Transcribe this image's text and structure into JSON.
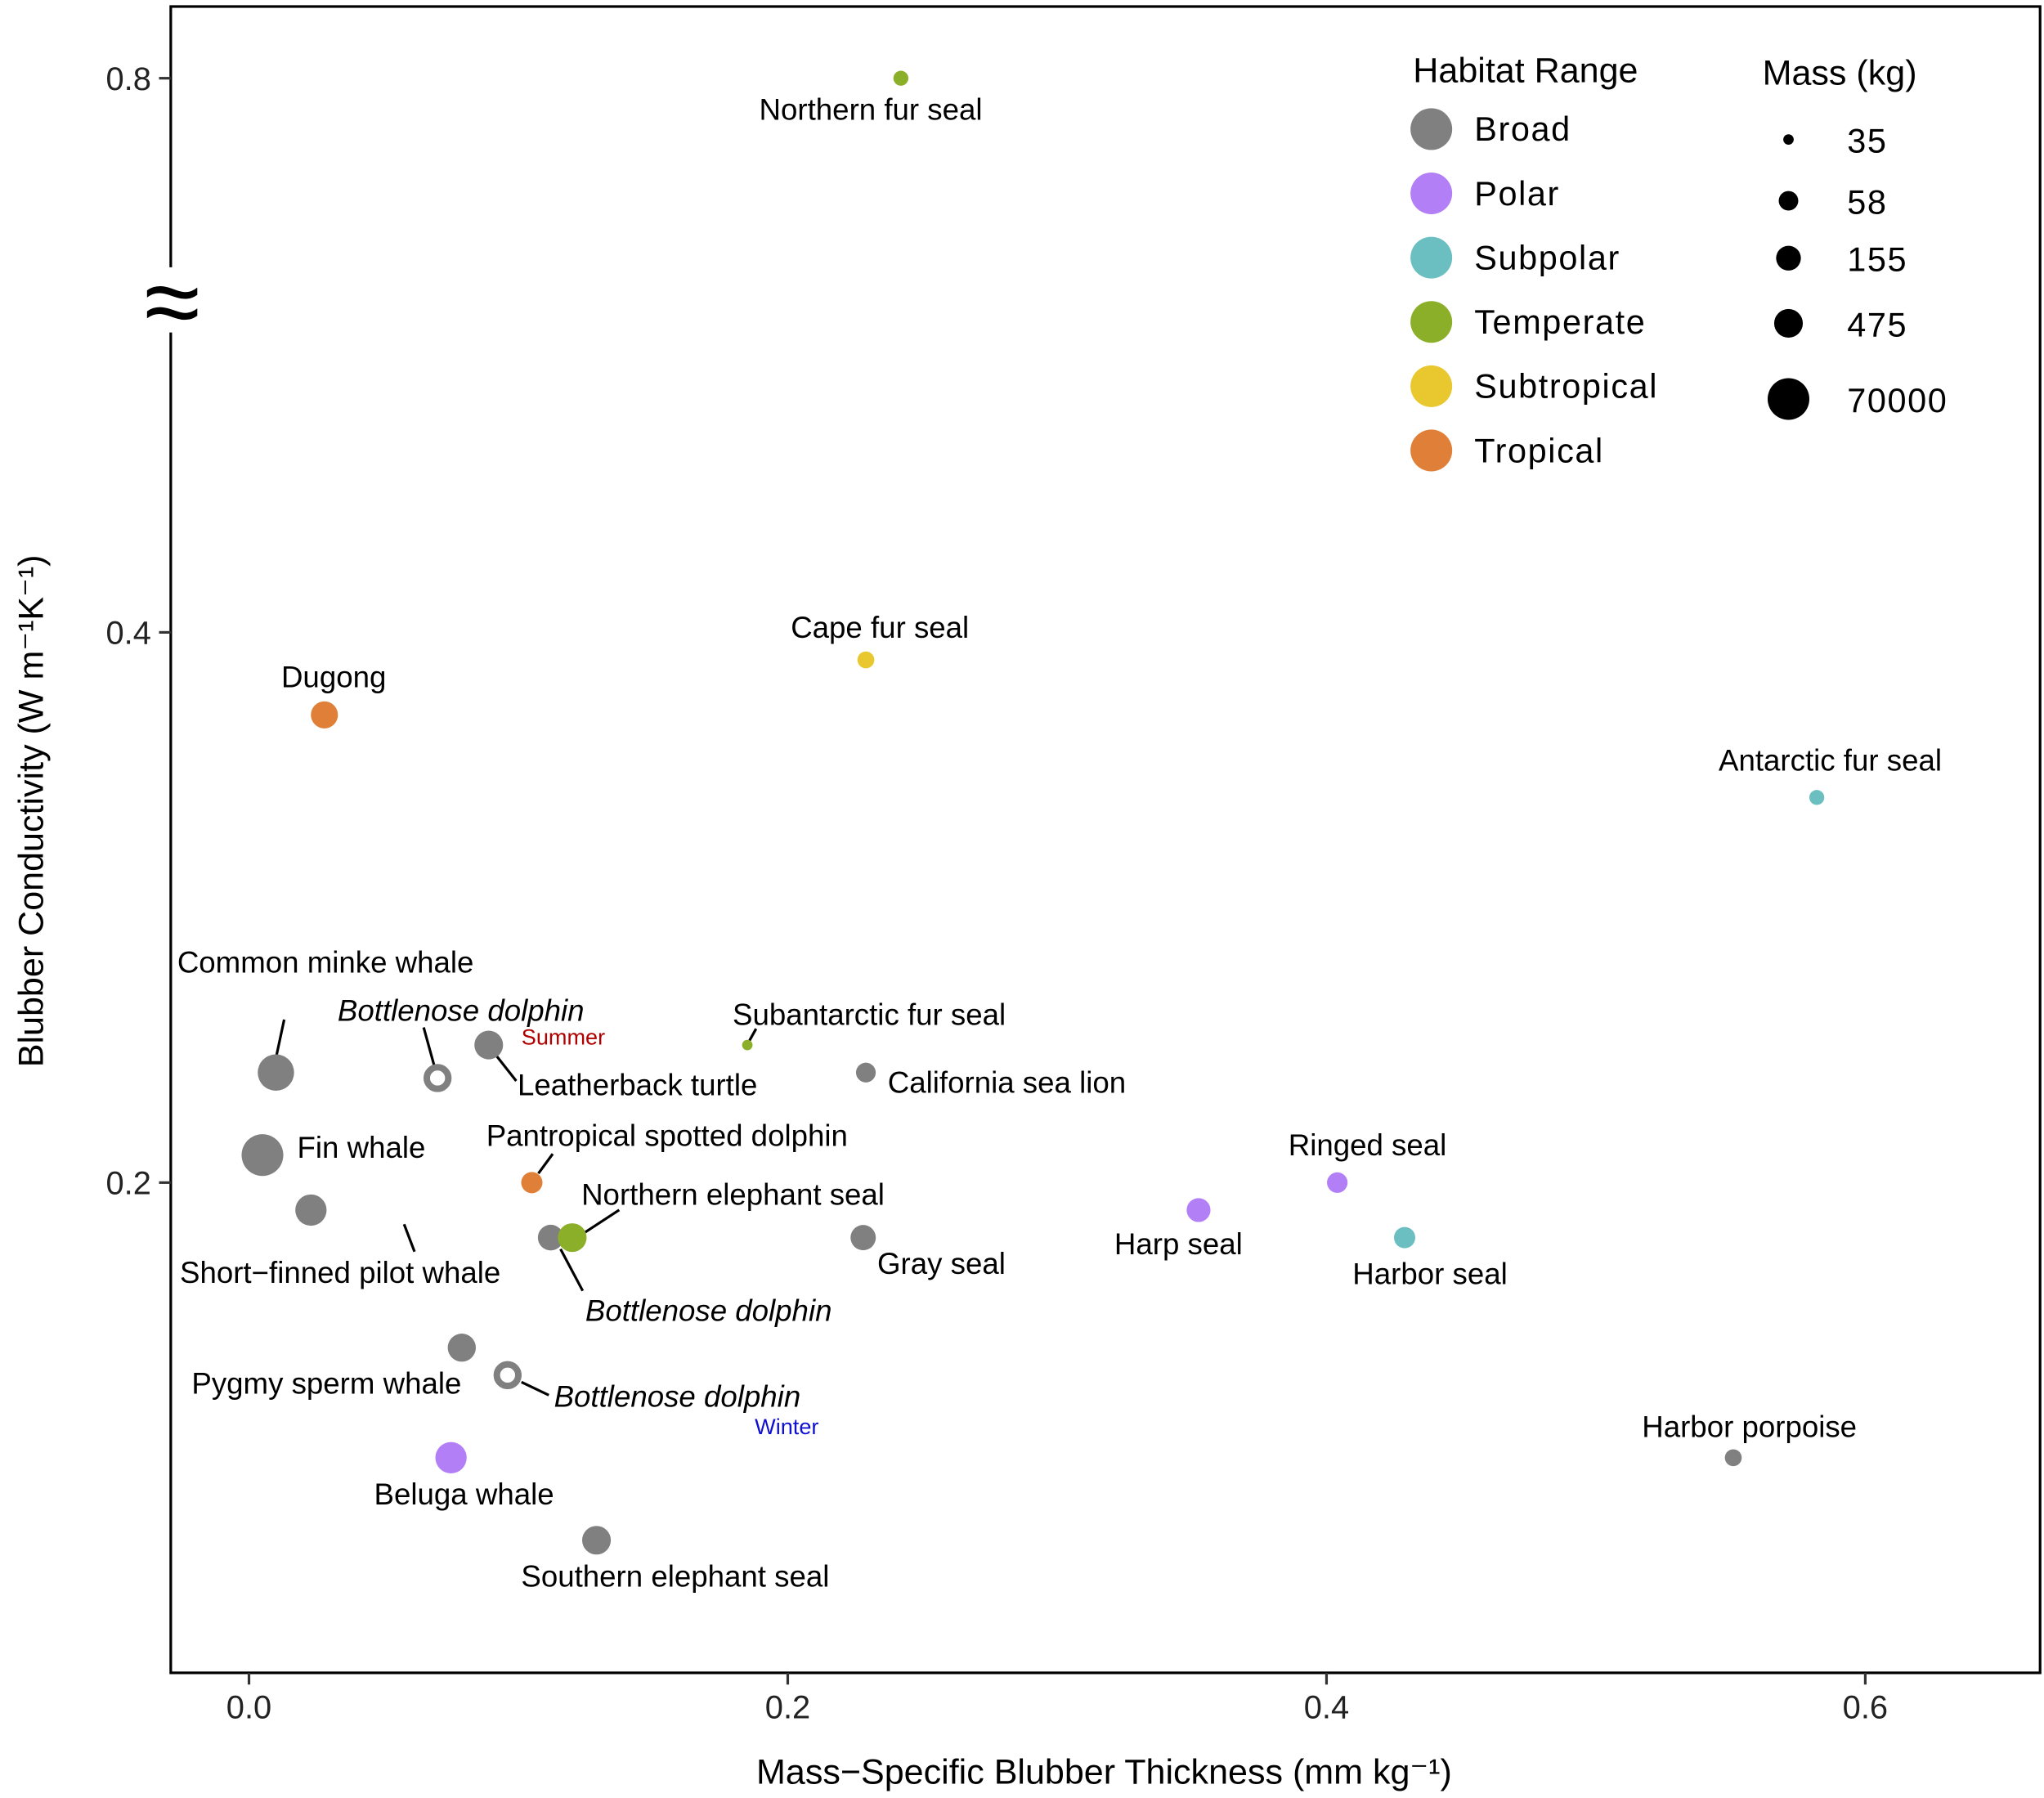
{
  "chart_data": {
    "type": "scatter",
    "xlabel": "Mass−Specific Blubber Thickness (mm kg⁻¹)",
    "ylabel": "Blubber Conductivity (W m⁻¹K⁻¹)",
    "xlim": [
      -0.03,
      0.66
    ],
    "ylim": [
      0.05,
      0.8
    ],
    "y_axis_break": "between 0.4 and 0.8",
    "x_ticks": [
      {
        "v": 0.0,
        "label": "0.0"
      },
      {
        "v": 0.2,
        "label": "0.2"
      },
      {
        "v": 0.4,
        "label": "0.4"
      },
      {
        "v": 0.6,
        "label": "0.6"
      }
    ],
    "y_ticks": [
      {
        "v": 0.2,
        "label": "0.2"
      },
      {
        "v": 0.4,
        "label": "0.4"
      },
      {
        "v": 0.8,
        "label": "0.8"
      }
    ],
    "grid": false,
    "habitat_colors": {
      "Broad": "#808080",
      "Polar": "#b37ff6",
      "Subpolar": "#6cbfc1",
      "Temperate": "#8caf2a",
      "Subtropical": "#e8c82e",
      "Tropical": "#e08038"
    },
    "legend_habitat": {
      "title": "Habitat Range",
      "items": [
        "Broad",
        "Polar",
        "Subpolar",
        "Temperate",
        "Subtropical",
        "Tropical"
      ],
      "placement": "top-right"
    },
    "legend_mass": {
      "title": "Mass (kg)",
      "items": [
        {
          "label": "35",
          "mass": 35
        },
        {
          "label": "58",
          "mass": 58
        },
        {
          "label": "155",
          "mass": 155
        },
        {
          "label": "475",
          "mass": 475
        },
        {
          "label": "70000",
          "mass": 70000
        }
      ],
      "placement": "top-right"
    },
    "points": [
      {
        "name": "Northern fur seal",
        "x": 0.242,
        "y": 0.8,
        "habitat": "Temperate",
        "mass": 45
      },
      {
        "name": "Cape fur seal",
        "x": 0.229,
        "y": 0.39,
        "habitat": "Subtropical",
        "mass": 50
      },
      {
        "name": "Dugong",
        "x": 0.028,
        "y": 0.37,
        "habitat": "Tropical",
        "mass": 300
      },
      {
        "name": "Antarctic fur seal",
        "x": 0.582,
        "y": 0.34,
        "habitat": "Subpolar",
        "mass": 45
      },
      {
        "name": "Common minke whale",
        "x": 0.01,
        "y": 0.24,
        "habitat": "Broad",
        "mass": 9000
      },
      {
        "name": "Bottlenose dolphin",
        "x": 0.07,
        "y": 0.238,
        "habitat": "Broad",
        "mass": 400,
        "open": true,
        "season": "Summer",
        "season_color": "#b00000",
        "italic": true
      },
      {
        "name": "Leatherback turtle",
        "x": 0.089,
        "y": 0.25,
        "habitat": "Broad",
        "mass": 475
      },
      {
        "name": "Subantarctic fur seal",
        "x": 0.185,
        "y": 0.25,
        "habitat": "Temperate",
        "mass": 35
      },
      {
        "name": "California sea lion",
        "x": 0.229,
        "y": 0.24,
        "habitat": "Broad",
        "mass": 60
      },
      {
        "name": "Fin whale",
        "x": 0.005,
        "y": 0.21,
        "habitat": "Broad",
        "mass": 70000
      },
      {
        "name": "Pantropical spotted dolphin",
        "x": 0.105,
        "y": 0.2,
        "habitat": "Tropical",
        "mass": 80
      },
      {
        "name": "Short−finned pilot whale",
        "x": 0.023,
        "y": 0.19,
        "habitat": "Broad",
        "mass": 1300
      },
      {
        "name": "Bottlenose dolphin",
        "x": 0.112,
        "y": 0.18,
        "habitat": "Broad",
        "mass": 200,
        "italic": true
      },
      {
        "name": "Northern elephant seal",
        "x": 0.12,
        "y": 0.18,
        "habitat": "Temperate",
        "mass": 475
      },
      {
        "name": "Gray seal",
        "x": 0.228,
        "y": 0.18,
        "habitat": "Broad",
        "mass": 180
      },
      {
        "name": "Harp seal",
        "x": 0.3525,
        "y": 0.19,
        "habitat": "Polar",
        "mass": 130
      },
      {
        "name": "Ringed seal",
        "x": 0.404,
        "y": 0.2,
        "habitat": "Polar",
        "mass": 70
      },
      {
        "name": "Harbor seal",
        "x": 0.429,
        "y": 0.18,
        "habitat": "Subpolar",
        "mass": 80
      },
      {
        "name": "Pygmy sperm whale",
        "x": 0.079,
        "y": 0.14,
        "habitat": "Broad",
        "mass": 400
      },
      {
        "name": "Bottlenose dolphin",
        "x": 0.096,
        "y": 0.13,
        "habitat": "Broad",
        "mass": 400,
        "open": true,
        "season": "Winter",
        "season_color": "#1010d0",
        "italic": true
      },
      {
        "name": "Beluga whale",
        "x": 0.075,
        "y": 0.1,
        "habitat": "Polar",
        "mass": 1300
      },
      {
        "name": "Harbor porpoise",
        "x": 0.551,
        "y": 0.1,
        "habitat": "Broad",
        "mass": 50
      },
      {
        "name": "Southern elephant seal",
        "x": 0.129,
        "y": 0.07,
        "habitat": "Broad",
        "mass": 475
      }
    ]
  }
}
